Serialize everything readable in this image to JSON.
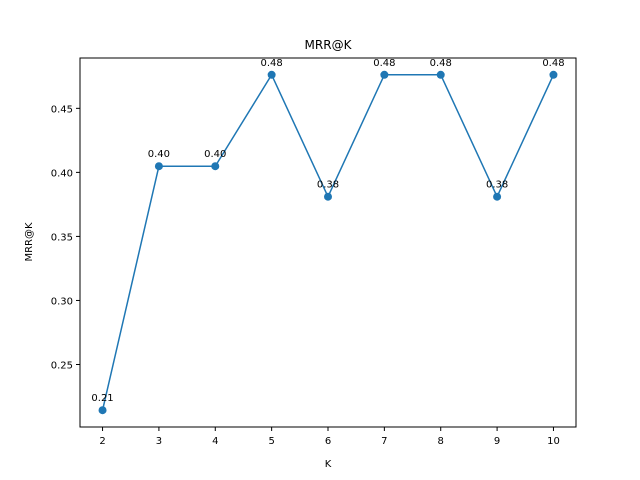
{
  "chart_data": {
    "type": "line",
    "title": "MRR@K",
    "xlabel": "K",
    "ylabel": "MRR@K",
    "x": [
      2,
      3,
      4,
      5,
      6,
      7,
      8,
      9,
      10
    ],
    "series": [
      {
        "values": [
          0.2143,
          0.4048,
          0.4048,
          0.4762,
          0.381,
          0.4762,
          0.4762,
          0.381,
          0.4762
        ],
        "labels": [
          "0.21",
          "0.40",
          "0.40",
          "0.48",
          "0.38",
          "0.48",
          "0.48",
          "0.38",
          "0.48"
        ],
        "color": "#1f77b4",
        "marker": "circle"
      }
    ],
    "xlim": [
      1.6,
      10.4
    ],
    "ylim": [
      0.2012,
      0.4893
    ],
    "xticks": [
      2,
      3,
      4,
      5,
      6,
      7,
      8,
      9,
      10
    ],
    "xtick_labels": [
      "2",
      "3",
      "4",
      "5",
      "6",
      "7",
      "8",
      "9",
      "10"
    ],
    "yticks": [
      0.25,
      0.3,
      0.35,
      0.4,
      0.45
    ],
    "ytick_labels": [
      "0.25",
      "0.30",
      "0.35",
      "0.40",
      "0.45"
    ],
    "grid": false,
    "legend": "none"
  }
}
